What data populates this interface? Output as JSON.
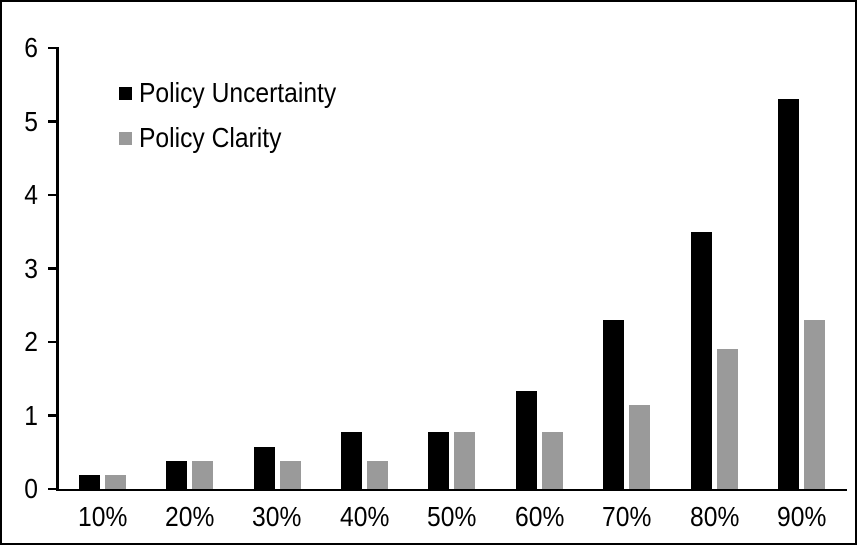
{
  "window": {
    "background": "#ffffff",
    "frame_color": "#000000"
  },
  "chart_data": {
    "type": "bar",
    "categories": [
      "10%",
      "20%",
      "30%",
      "40%",
      "50%",
      "60%",
      "70%",
      "80%",
      "90%"
    ],
    "series": [
      {
        "name": "Policy Uncertainty",
        "color": "#000000",
        "values": [
          0.19,
          0.38,
          0.57,
          0.77,
          0.77,
          1.33,
          2.3,
          3.5,
          5.3
        ]
      },
      {
        "name": "Policy Clarity",
        "color": "#9A9A9A",
        "values": [
          0.19,
          0.38,
          0.38,
          0.38,
          0.77,
          0.77,
          1.15,
          1.9,
          2.3
        ]
      }
    ],
    "xlabel": "",
    "ylabel": "",
    "ylim": [
      0,
      6
    ],
    "yticks": [
      0,
      1,
      2,
      3,
      4,
      5,
      6
    ],
    "grid": false,
    "legend_position": "inside-top-left",
    "axis_color": "#000000",
    "tick_label_color": "#000000"
  }
}
